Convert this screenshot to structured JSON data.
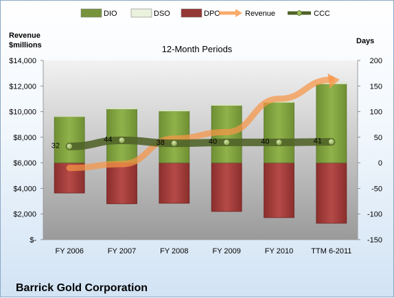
{
  "chart_data": {
    "type": "bar",
    "title": "12-Month Periods",
    "footer": "Barrick Gold Corporation",
    "categories": [
      "FY 2006",
      "FY 2007",
      "FY 2008",
      "FY 2009",
      "FY 2010",
      "TTM 6-2011"
    ],
    "left_axis": {
      "label_line1": "Revenue",
      "label_line2": "$millions",
      "ylim": [
        0,
        14000
      ],
      "ticks": [
        {
          "v": 0,
          "t": "$-"
        },
        {
          "v": 2000,
          "t": "$2,000"
        },
        {
          "v": 4000,
          "t": "$4,000"
        },
        {
          "v": 6000,
          "t": "$6,000"
        },
        {
          "v": 8000,
          "t": "$8,000"
        },
        {
          "v": 10000,
          "t": "$10,000"
        },
        {
          "v": 12000,
          "t": "$12,000"
        },
        {
          "v": 14000,
          "t": "$14,000"
        }
      ]
    },
    "right_axis": {
      "label": "Days",
      "ylim": [
        -150,
        200
      ],
      "ticks": [
        {
          "v": -150,
          "t": "-150"
        },
        {
          "v": -100,
          "t": "-100"
        },
        {
          "v": -50,
          "t": "-50"
        },
        {
          "v": 0,
          "t": "0"
        },
        {
          "v": 50,
          "t": "50"
        },
        {
          "v": 100,
          "t": "100"
        },
        {
          "v": 150,
          "t": "150"
        },
        {
          "v": 200,
          "t": "200"
        }
      ]
    },
    "legend": [
      {
        "name": "DIO",
        "color": "#77933c"
      },
      {
        "name": "DSO",
        "color": "#eaf1dd"
      },
      {
        "name": "DPO",
        "color": "#953735"
      },
      {
        "name": "Revenue",
        "color": "#f79646"
      },
      {
        "name": "CCC",
        "color": "#4f6228"
      }
    ],
    "series": [
      {
        "name": "DIO",
        "axis": "right",
        "values": [
          90,
          105,
          101,
          112,
          118,
          154
        ]
      },
      {
        "name": "DSO",
        "axis": "right",
        "values": [
          1,
          2,
          2,
          2,
          2,
          3
        ]
      },
      {
        "name": "DPO",
        "axis": "right",
        "values": [
          -59,
          -80,
          -79,
          -95,
          -107,
          -118
        ]
      },
      {
        "name": "Revenue",
        "axis": "left",
        "values": [
          5600,
          5900,
          7900,
          8400,
          11000,
          12500
        ]
      },
      {
        "name": "CCC",
        "axis": "right",
        "values": [
          32,
          44,
          38,
          40,
          40,
          41
        ],
        "labels": [
          "32",
          "44",
          "38",
          "40",
          "40",
          "41"
        ]
      }
    ],
    "grid": false,
    "legend_position": "top"
  },
  "colors": {
    "dio": "#77933c",
    "dio_edge": "#5a7530",
    "dso": "#eaf1dd",
    "dpo": "#953735",
    "dpo_edge": "#6e2624",
    "revenue": "#f79646",
    "ccc": "#4f6228",
    "marker": "#9bbb59"
  }
}
